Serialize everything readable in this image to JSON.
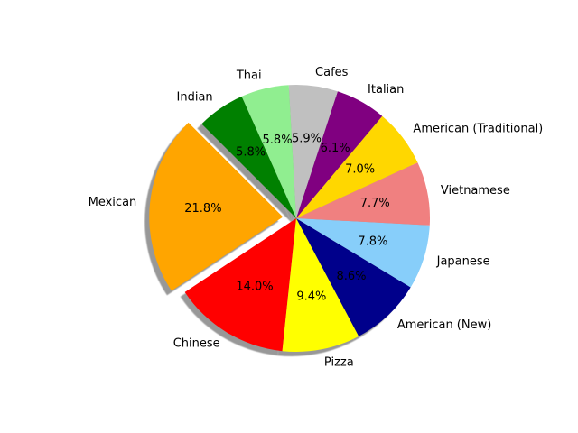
{
  "chart_data": {
    "type": "pie",
    "title": "",
    "start_angle_deg": 135,
    "counterclock": true,
    "shadow": true,
    "exploded": [
      "Mexican"
    ],
    "slices": [
      {
        "label": "Mexican",
        "value": 21.8,
        "pct_label": "21.8%",
        "color": "#ffa500"
      },
      {
        "label": "Chinese",
        "value": 14.0,
        "pct_label": "14.0%",
        "color": "#ff0000"
      },
      {
        "label": "Pizza",
        "value": 9.4,
        "pct_label": "9.4%",
        "color": "#ffff00"
      },
      {
        "label": "American (New)",
        "value": 8.6,
        "pct_label": "8.6%",
        "color": "#00008b"
      },
      {
        "label": "Japanese",
        "value": 7.8,
        "pct_label": "7.8%",
        "color": "#87cefa"
      },
      {
        "label": "Vietnamese",
        "value": 7.7,
        "pct_label": "7.7%",
        "color": "#f08080"
      },
      {
        "label": "American (Traditional)",
        "value": 7.0,
        "pct_label": "7.0%",
        "color": "#ffd700"
      },
      {
        "label": "Italian",
        "value": 6.1,
        "pct_label": "6.1%",
        "color": "#800080"
      },
      {
        "label": "Cafes",
        "value": 5.9,
        "pct_label": "5.9%",
        "color": "#c0c0c0"
      },
      {
        "label": "Thai",
        "value": 5.8,
        "pct_label": "5.8%",
        "color": "#90ee90"
      },
      {
        "label": "Indian",
        "value": 5.8,
        "pct_label": "5.8%",
        "color": "#008000"
      }
    ]
  }
}
